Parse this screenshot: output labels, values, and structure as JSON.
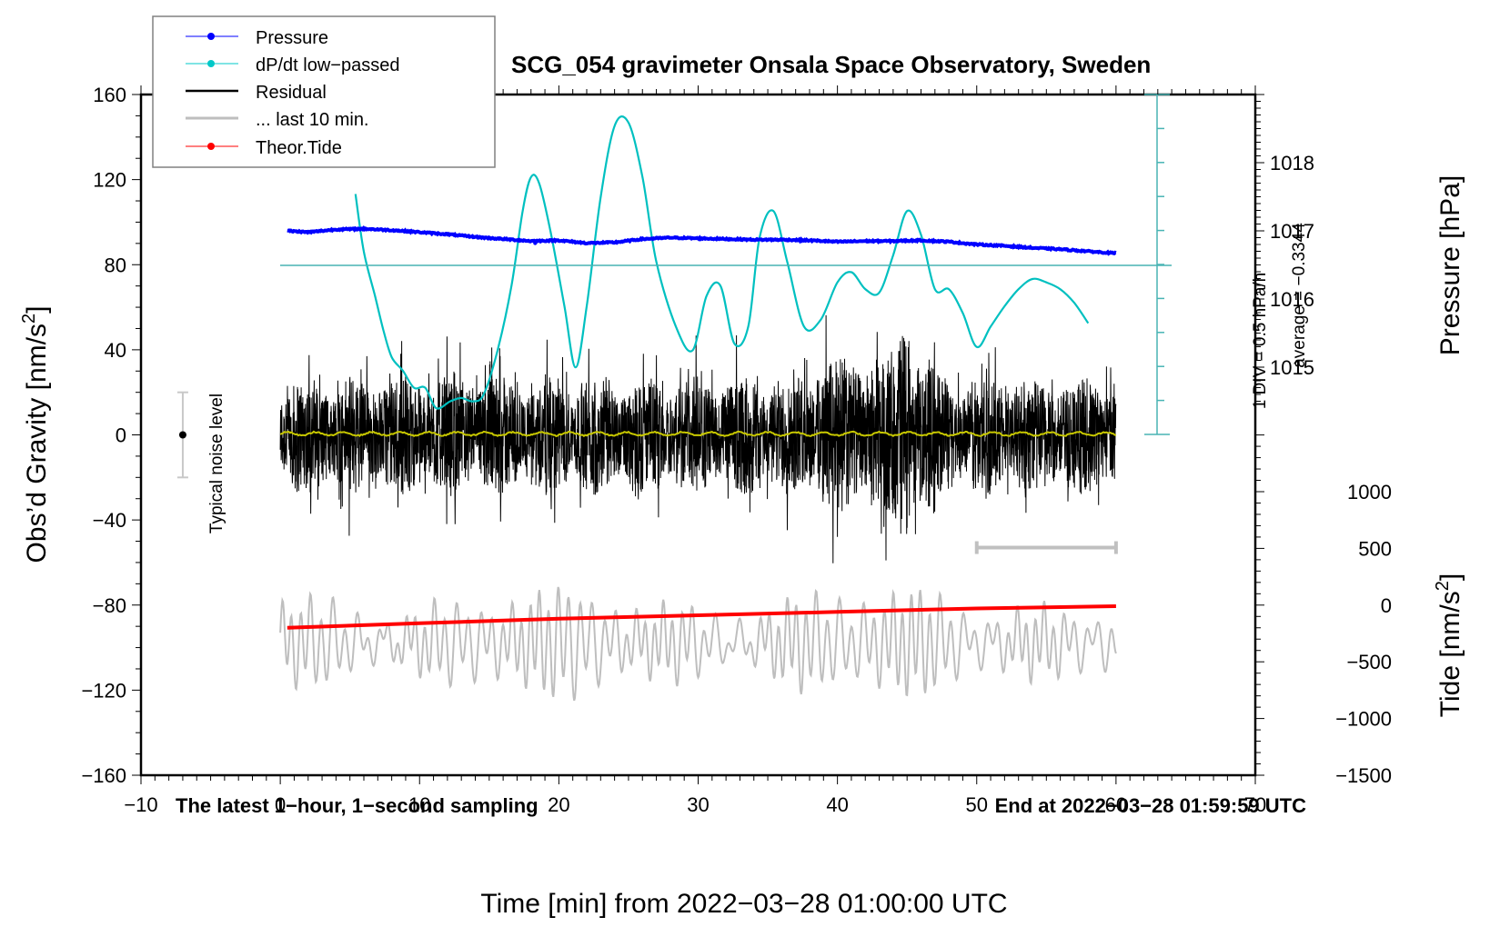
{
  "chart_data": {
    "type": "line",
    "title": "SCG_054 gravimeter Onsala Space Observatory, Sweden",
    "xlabel": "Time [min] from 2022−03−28 01:00:00 UTC",
    "xlim": [
      -10,
      70
    ],
    "x_ticks": [
      -10,
      0,
      10,
      20,
      30,
      40,
      50,
      60,
      70
    ],
    "x_tick_labels": [
      "−10",
      "0",
      "10",
      "20",
      "30",
      "40",
      "50",
      "60",
      "70"
    ],
    "left_axis": {
      "label": "Obs’d Gravity [nm/s²]",
      "label_main": "Obs’d Gravity [nm/s",
      "label_sup": "2",
      "label_end": "]",
      "ylim": [
        -160,
        160
      ],
      "ticks": [
        -160,
        -120,
        -80,
        -40,
        0,
        40,
        80,
        120,
        160
      ],
      "tick_labels": [
        "−160",
        "−120",
        "−80",
        "−40",
        "0",
        "40",
        "80",
        "120",
        "160"
      ]
    },
    "pressure_axis": {
      "label": "Pressure [hPa]",
      "ticks": [
        1015,
        1016,
        1017,
        1018
      ],
      "tick_labels": [
        "1015",
        "1016",
        "1017",
        "1018"
      ]
    },
    "tide_axis": {
      "label": "Tide [nm/s²]",
      "label_main": "Tide [nm/s",
      "label_sup": "2",
      "label_end": "]",
      "ylim": [
        -1500,
        1000
      ],
      "ticks": [
        -1500,
        -1000,
        -500,
        0,
        500,
        1000
      ],
      "tick_labels": [
        "−1500",
        "−1000",
        "−500",
        "0",
        "500",
        "1000"
      ]
    },
    "dpdt_scale": {
      "div_label": "1 DIV = 0.5 hPa/h",
      "average_label": "average = −0.3344",
      "hPa_per_hour_per_div": 0.5,
      "average": -0.3344,
      "divisions": 10
    },
    "legend": {
      "position": "top-left",
      "entries": [
        {
          "label": "Pressure",
          "color": "#0000ff",
          "marker": "dot"
        },
        {
          "label": "dP/dt low−passed",
          "color": "#00c8c8",
          "marker": "dot"
        },
        {
          "label": "Residual",
          "color": "#000000",
          "marker": "none"
        },
        {
          "label": "... last 10 min.",
          "color": "#bebebe",
          "marker": "none"
        },
        {
          "label": "Theor.Tide",
          "color": "#ff0000",
          "marker": "dot"
        }
      ]
    },
    "annotations": {
      "bottom_left": "The latest 1−hour, 1−second sampling",
      "bottom_right": "End at 2022−03−28 01:59:59 UTC",
      "noise_label": "Typical noise level",
      "noise_level": {
        "x": -7,
        "center": 0,
        "half_range": 20
      },
      "last_10min_bar": {
        "x_start": 50,
        "x_end": 60,
        "y": -53
      }
    },
    "series": [
      {
        "name": "Pressure",
        "axis": "pressure",
        "color": "#0000ff",
        "x": [
          0.5,
          2,
          4,
          6,
          8,
          10,
          12,
          14,
          16,
          18,
          20,
          22,
          24,
          26,
          28,
          30,
          32,
          34,
          36,
          38,
          40,
          42,
          44,
          46,
          48,
          50,
          52,
          54,
          56,
          58,
          60
        ],
        "values": [
          1017.0,
          1016.98,
          1017.02,
          1017.03,
          1017.01,
          1016.98,
          1016.95,
          1016.91,
          1016.88,
          1016.85,
          1016.86,
          1016.82,
          1016.83,
          1016.88,
          1016.9,
          1016.89,
          1016.88,
          1016.87,
          1016.87,
          1016.86,
          1016.84,
          1016.85,
          1016.85,
          1016.86,
          1016.84,
          1016.8,
          1016.78,
          1016.75,
          1016.73,
          1016.7,
          1016.67
        ]
      },
      {
        "name": "dP/dt low-passed",
        "axis": "dpdt_div",
        "units": "hPa/h",
        "color": "#00c8c8",
        "x": [
          5.4,
          6,
          6.8,
          7.4,
          8,
          8.8,
          9.6,
          10.4,
          11.2,
          12.2,
          13,
          13.8,
          14.6,
          15.6,
          16.6,
          17.4,
          18,
          18.6,
          19.4,
          20.4,
          21.2,
          22,
          23,
          24,
          25,
          26,
          27,
          28.4,
          29.6,
          30.6,
          31.6,
          32.6,
          33.6,
          34.4,
          35.4,
          36.4,
          37.6,
          38.8,
          40,
          41,
          42,
          43,
          44,
          45,
          46,
          47,
          48,
          49,
          50,
          51,
          52,
          53,
          54,
          55,
          56,
          57,
          58
        ],
        "values": [
          1.05,
          0.2,
          -0.45,
          -0.95,
          -1.35,
          -1.55,
          -1.8,
          -1.8,
          -2.1,
          -2.0,
          -1.95,
          -2.0,
          -1.9,
          -1.25,
          -0.3,
          0.8,
          1.3,
          1.2,
          0.5,
          -0.6,
          -1.5,
          -0.6,
          1.0,
          2.05,
          2.1,
          1.3,
          0.05,
          -0.9,
          -1.25,
          -0.45,
          -0.3,
          -1.15,
          -0.9,
          0.4,
          0.8,
          0.05,
          -0.9,
          -0.8,
          -0.25,
          -0.1,
          -0.35,
          -0.4,
          0.15,
          0.8,
          0.45,
          -0.35,
          -0.35,
          -0.7,
          -1.2,
          -0.9,
          -0.6,
          -0.35,
          -0.2,
          -0.25,
          -0.35,
          -0.55,
          -0.85
        ]
      },
      {
        "name": "Residual",
        "axis": "left",
        "color": "#000000",
        "description": "1-second residual gravity noise, roughly ±30 nm/s² envelope with spikes up to ~68 near t=44.8 min",
        "x_range": [
          0,
          60
        ],
        "envelope": {
          "typical_max": 30,
          "typical_min": -30,
          "peak_max": 68,
          "peak_min": -65
        }
      },
      {
        "name": "Residual (low-passed)",
        "axis": "left",
        "color": "#c8c800",
        "description": "Smoothed residual trace near zero",
        "x_range": [
          0,
          60
        ],
        "approx_value": 0.5
      },
      {
        "name": "... last 10 min.",
        "axis": "tide",
        "color": "#bebebe",
        "description": "Last 10 minutes of residual at higher gain, oscillating roughly between -1050 and +550 nm/s² on tide axis scale",
        "x_range": [
          0,
          60
        ]
      },
      {
        "name": "Theor.Tide",
        "axis": "tide",
        "color": "#ff0000",
        "x": [
          0.5,
          10,
          20,
          30,
          40,
          50,
          60
        ],
        "values": [
          -200,
          -160,
          -120,
          -90,
          -60,
          -30,
          -10
        ]
      }
    ]
  }
}
